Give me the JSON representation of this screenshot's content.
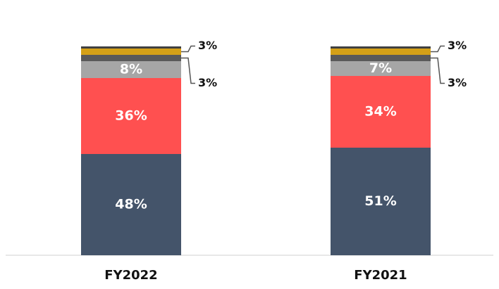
{
  "chart_data": {
    "type": "stacked_bar",
    "categories": [
      "FY2022",
      "FY2021"
    ],
    "series": [
      {
        "color": "#44546a",
        "values": [
          48,
          51
        ],
        "value_labels": [
          "48%",
          "51%"
        ]
      },
      {
        "color": "#ff5050",
        "values": [
          36,
          34
        ],
        "value_labels": [
          "36%",
          "34%"
        ]
      },
      {
        "color": "#a6a6a6",
        "values": [
          8,
          7
        ],
        "value_labels": [
          "8%",
          "7%"
        ]
      },
      {
        "color": "#595959",
        "values": [
          3,
          3
        ],
        "value_labels": [
          "3%",
          "3%"
        ]
      },
      {
        "color": "#d4a017",
        "values": [
          3,
          3
        ],
        "value_labels": [
          "3%",
          "3%"
        ]
      },
      {
        "color": "#404040",
        "values": [
          1,
          1
        ]
      }
    ]
  }
}
